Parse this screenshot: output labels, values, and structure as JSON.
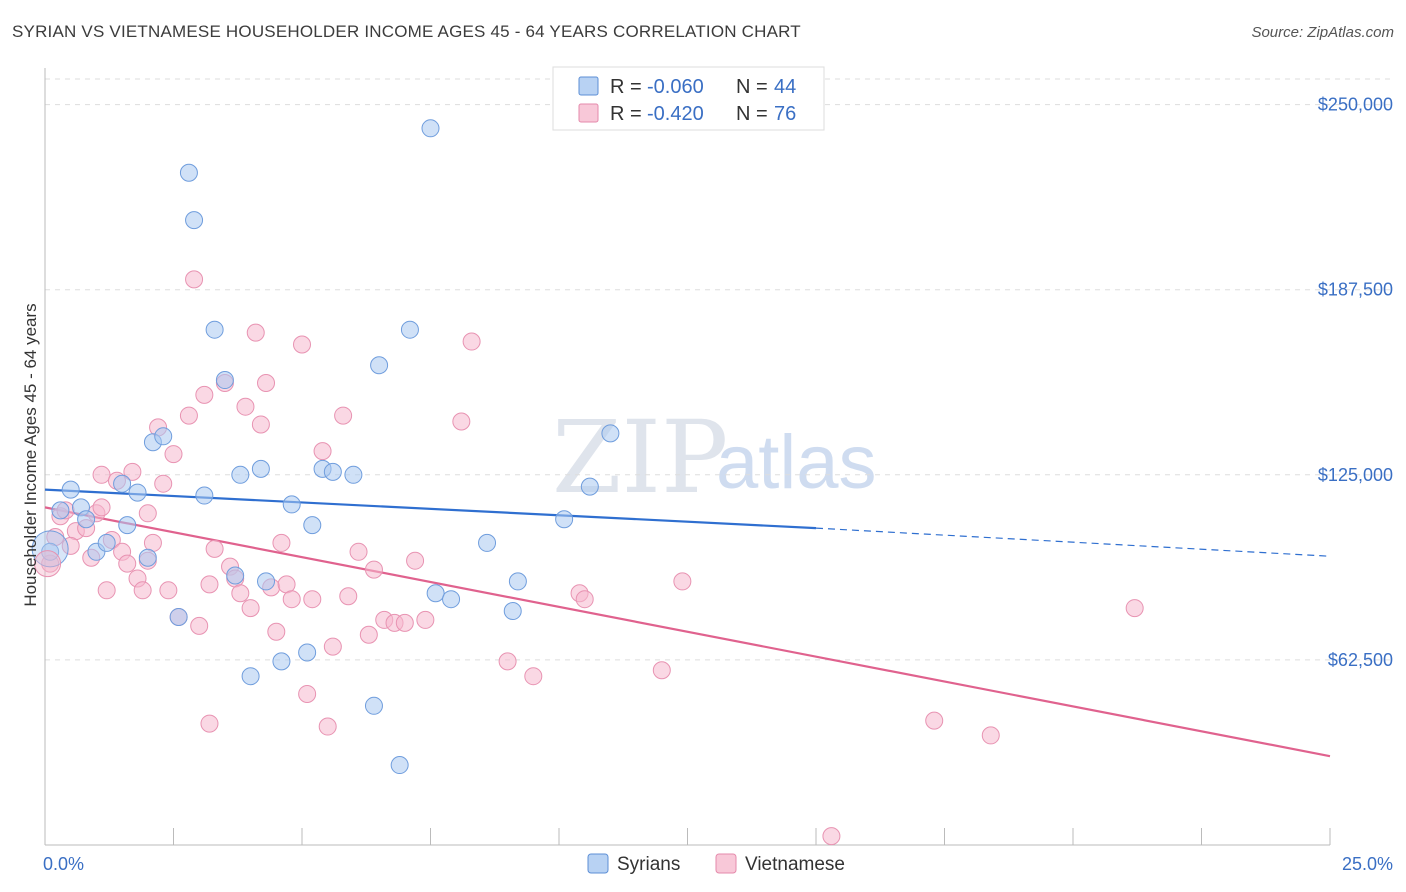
{
  "title": "SYRIAN VS VIETNAMESE HOUSEHOLDER INCOME AGES 45 - 64 YEARS CORRELATION CHART",
  "source": "Source: ZipAtlas.com",
  "watermark": {
    "zip": "ZIP",
    "atlas": "atlas"
  },
  "colors": {
    "syrians_fill": "#a9c8f0",
    "syrians_line": "#2f6fd0",
    "vietnamese_fill": "#f5b8cd",
    "vietnamese_line": "#e0628e",
    "axis_label": "#3a6fc4",
    "grid": "#dddddd"
  },
  "legend": {
    "rows": [
      {
        "r_label": "R =",
        "r_value": "-0.060",
        "n_label": "N =",
        "n_value": "44"
      },
      {
        "r_label": "R =",
        "r_value": "-0.420",
        "n_label": "N =",
        "n_value": "76"
      }
    ]
  },
  "bottom_legend": [
    "Syrians",
    "Vietnamese"
  ],
  "chart_data": {
    "type": "scatter",
    "title": "SYRIAN VS VIETNAMESE HOUSEHOLDER INCOME AGES 45 - 64 YEARS CORRELATION CHART",
    "xlabel": "",
    "ylabel": "Householder Income Ages 45 - 64 years",
    "xlim": [
      0,
      25
    ],
    "ylim": [
      0,
      260000
    ],
    "x_tick_labels": [
      "0.0%",
      "25.0%"
    ],
    "y_ticks": [
      62500,
      125000,
      187500,
      250000
    ],
    "y_tick_labels": [
      "$62,500",
      "$125,000",
      "$187,500",
      "$250,000"
    ],
    "series": [
      {
        "name": "Syrians",
        "R": -0.06,
        "N": 44,
        "trend": {
          "x0": 0,
          "y0": 120000,
          "x1": 15,
          "y1": 107000,
          "dashed_to_x": 25,
          "dashed_to_y": 97500
        },
        "points": [
          [
            0.1,
            99000
          ],
          [
            0.5,
            120000
          ],
          [
            0.7,
            114000
          ],
          [
            0.8,
            110000
          ],
          [
            1.0,
            99000
          ],
          [
            1.2,
            102000
          ],
          [
            1.5,
            122000
          ],
          [
            1.6,
            108000
          ],
          [
            1.8,
            119000
          ],
          [
            2.0,
            97000
          ],
          [
            2.1,
            136000
          ],
          [
            2.3,
            138000
          ],
          [
            2.6,
            77000
          ],
          [
            2.8,
            227000
          ],
          [
            2.9,
            211000
          ],
          [
            3.1,
            118000
          ],
          [
            3.3,
            174000
          ],
          [
            3.5,
            157000
          ],
          [
            3.7,
            91000
          ],
          [
            3.8,
            125000
          ],
          [
            4.0,
            57000
          ],
          [
            4.2,
            127000
          ],
          [
            4.3,
            89000
          ],
          [
            4.6,
            62000
          ],
          [
            4.8,
            115000
          ],
          [
            5.1,
            65000
          ],
          [
            5.2,
            108000
          ],
          [
            5.4,
            127000
          ],
          [
            5.6,
            126000
          ],
          [
            6.0,
            125000
          ],
          [
            6.4,
            47000
          ],
          [
            6.5,
            162000
          ],
          [
            6.9,
            27000
          ],
          [
            7.1,
            174000
          ],
          [
            7.5,
            242000
          ],
          [
            7.6,
            85000
          ],
          [
            7.9,
            83000
          ],
          [
            8.6,
            102000
          ],
          [
            9.1,
            79000
          ],
          [
            9.2,
            89000
          ],
          [
            10.1,
            110000
          ],
          [
            10.6,
            121000
          ],
          [
            11.0,
            139000
          ],
          [
            0.3,
            113000
          ]
        ]
      },
      {
        "name": "Vietnamese",
        "R": -0.42,
        "N": 76,
        "trend": {
          "x0": 0,
          "y0": 114000,
          "x1": 25,
          "y1": 30000
        },
        "points": [
          [
            0.1,
            95000
          ],
          [
            0.2,
            104000
          ],
          [
            0.3,
            111000
          ],
          [
            0.4,
            113000
          ],
          [
            0.6,
            106000
          ],
          [
            0.8,
            107000
          ],
          [
            0.9,
            97000
          ],
          [
            1.0,
            112000
          ],
          [
            1.1,
            125000
          ],
          [
            1.2,
            86000
          ],
          [
            1.3,
            103000
          ],
          [
            1.4,
            123000
          ],
          [
            1.5,
            99000
          ],
          [
            1.6,
            95000
          ],
          [
            1.7,
            126000
          ],
          [
            1.8,
            90000
          ],
          [
            1.9,
            86000
          ],
          [
            2.0,
            112000
          ],
          [
            2.1,
            102000
          ],
          [
            2.2,
            141000
          ],
          [
            2.3,
            122000
          ],
          [
            2.4,
            86000
          ],
          [
            2.5,
            132000
          ],
          [
            2.6,
            77000
          ],
          [
            2.8,
            145000
          ],
          [
            2.9,
            191000
          ],
          [
            3.0,
            74000
          ],
          [
            3.1,
            152000
          ],
          [
            3.2,
            41000
          ],
          [
            3.3,
            100000
          ],
          [
            3.5,
            156000
          ],
          [
            3.6,
            94000
          ],
          [
            3.7,
            90000
          ],
          [
            3.8,
            85000
          ],
          [
            3.9,
            148000
          ],
          [
            4.0,
            80000
          ],
          [
            4.1,
            173000
          ],
          [
            4.2,
            142000
          ],
          [
            4.3,
            156000
          ],
          [
            4.4,
            87000
          ],
          [
            4.5,
            72000
          ],
          [
            4.6,
            102000
          ],
          [
            4.7,
            88000
          ],
          [
            4.8,
            83000
          ],
          [
            5.0,
            169000
          ],
          [
            5.1,
            51000
          ],
          [
            5.2,
            83000
          ],
          [
            5.4,
            133000
          ],
          [
            5.5,
            40000
          ],
          [
            5.6,
            67000
          ],
          [
            5.8,
            145000
          ],
          [
            5.9,
            84000
          ],
          [
            6.1,
            99000
          ],
          [
            6.3,
            71000
          ],
          [
            6.4,
            93000
          ],
          [
            6.6,
            76000
          ],
          [
            6.8,
            75000
          ],
          [
            7.0,
            75000
          ],
          [
            7.2,
            96000
          ],
          [
            7.4,
            76000
          ],
          [
            8.1,
            143000
          ],
          [
            8.3,
            170000
          ],
          [
            9.0,
            62000
          ],
          [
            9.5,
            57000
          ],
          [
            10.4,
            85000
          ],
          [
            10.5,
            83000
          ],
          [
            12.0,
            59000
          ],
          [
            12.4,
            89000
          ],
          [
            15.3,
            3000
          ],
          [
            17.3,
            42000
          ],
          [
            18.4,
            37000
          ],
          [
            21.2,
            80000
          ],
          [
            0.5,
            101000
          ],
          [
            1.1,
            114000
          ],
          [
            2.0,
            96000
          ],
          [
            3.2,
            88000
          ]
        ]
      }
    ]
  }
}
